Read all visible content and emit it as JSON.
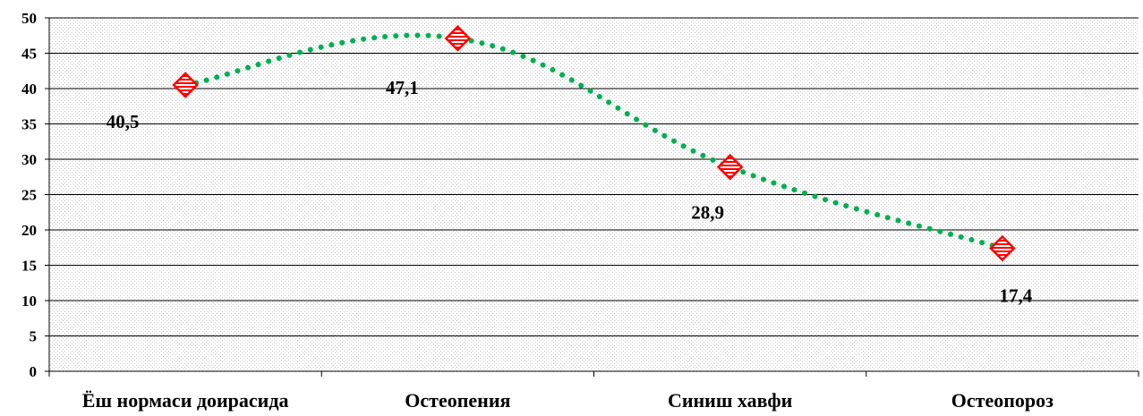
{
  "chart_data": {
    "type": "line",
    "categories": [
      "Ёш нормаси доирасида",
      "Остеопения",
      "Синиш хавфи",
      "Остеопороз"
    ],
    "series": [
      {
        "values": [
          40.5,
          47.1,
          28.9,
          17.4
        ]
      }
    ],
    "data_labels": [
      "40,5",
      "47,1",
      "28,9",
      "17,4"
    ],
    "y_ticks": [
      0,
      5,
      10,
      15,
      20,
      25,
      30,
      35,
      40,
      45,
      50
    ],
    "ylim": [
      0,
      50
    ],
    "grid": true,
    "legend": "none",
    "colors": {
      "line": "#00b050",
      "marker": "#ff0000",
      "gridline": "#000000",
      "plot_background": "#f4f4f4"
    },
    "marker_icon": "diamond-striped-marker"
  }
}
